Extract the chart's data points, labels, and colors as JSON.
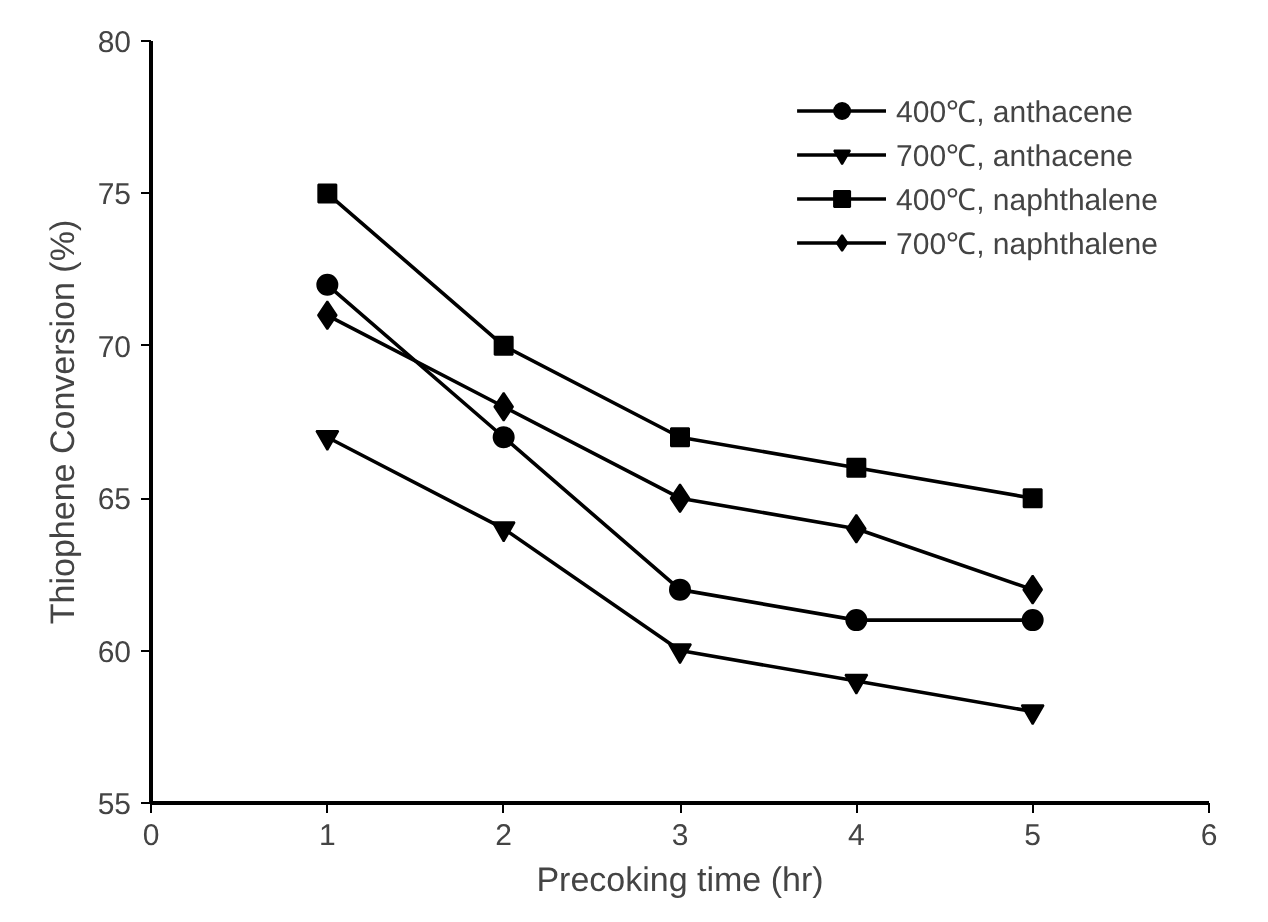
{
  "chart_data": {
    "type": "line",
    "xlabel": "Precoking time (hr)",
    "ylabel": "Thiophene Conversion (%)",
    "x": [
      1,
      2,
      3,
      4,
      5
    ],
    "series": [
      {
        "name": "400℃, anthacene",
        "color": "#000000",
        "marker": "circle",
        "values": [
          72,
          67,
          62,
          61,
          61
        ]
      },
      {
        "name": "700℃, anthacene",
        "color": "#000000",
        "marker": "triangle",
        "values": [
          67,
          64,
          60,
          59,
          58
        ]
      },
      {
        "name": "400℃, naphthalene",
        "color": "#000000",
        "marker": "square",
        "values": [
          75,
          70,
          67,
          66,
          65
        ]
      },
      {
        "name": "700℃, naphthalene",
        "color": "#000000",
        "marker": "diamond",
        "values": [
          71,
          68,
          65,
          64,
          62
        ]
      }
    ],
    "xlim": [
      0,
      6
    ],
    "xticks": [
      0,
      1,
      2,
      3,
      4,
      5,
      6
    ],
    "ylim": [
      55,
      80
    ],
    "yticks": [
      55,
      60,
      65,
      70,
      75,
      80
    ],
    "grid": false,
    "legend": "top right",
    "line_style": "solid"
  }
}
